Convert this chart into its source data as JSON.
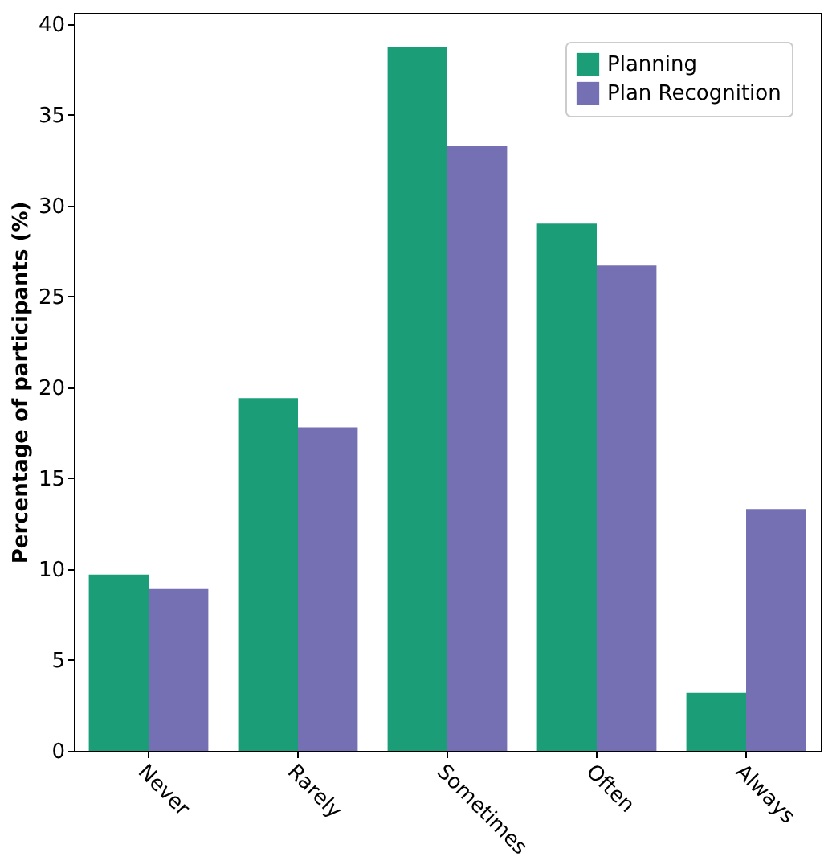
{
  "chart_data": {
    "type": "bar",
    "categories": [
      "Never",
      "Rarely",
      "Sometimes",
      "Often",
      "Always"
    ],
    "ylabel": "Percentage of participants (%)",
    "series": [
      {
        "name": "Planning",
        "color": "#1b9e77",
        "values": [
          9.7,
          19.4,
          38.7,
          29.0,
          3.2
        ]
      },
      {
        "name": "Plan Recognition",
        "color": "#7570b3",
        "values": [
          8.9,
          17.8,
          33.3,
          26.7,
          13.3
        ]
      }
    ],
    "ylim": [
      0,
      40.6
    ],
    "yticks": [
      0,
      5,
      10,
      15,
      20,
      25,
      30,
      35,
      40
    ],
    "legend": "top right"
  }
}
